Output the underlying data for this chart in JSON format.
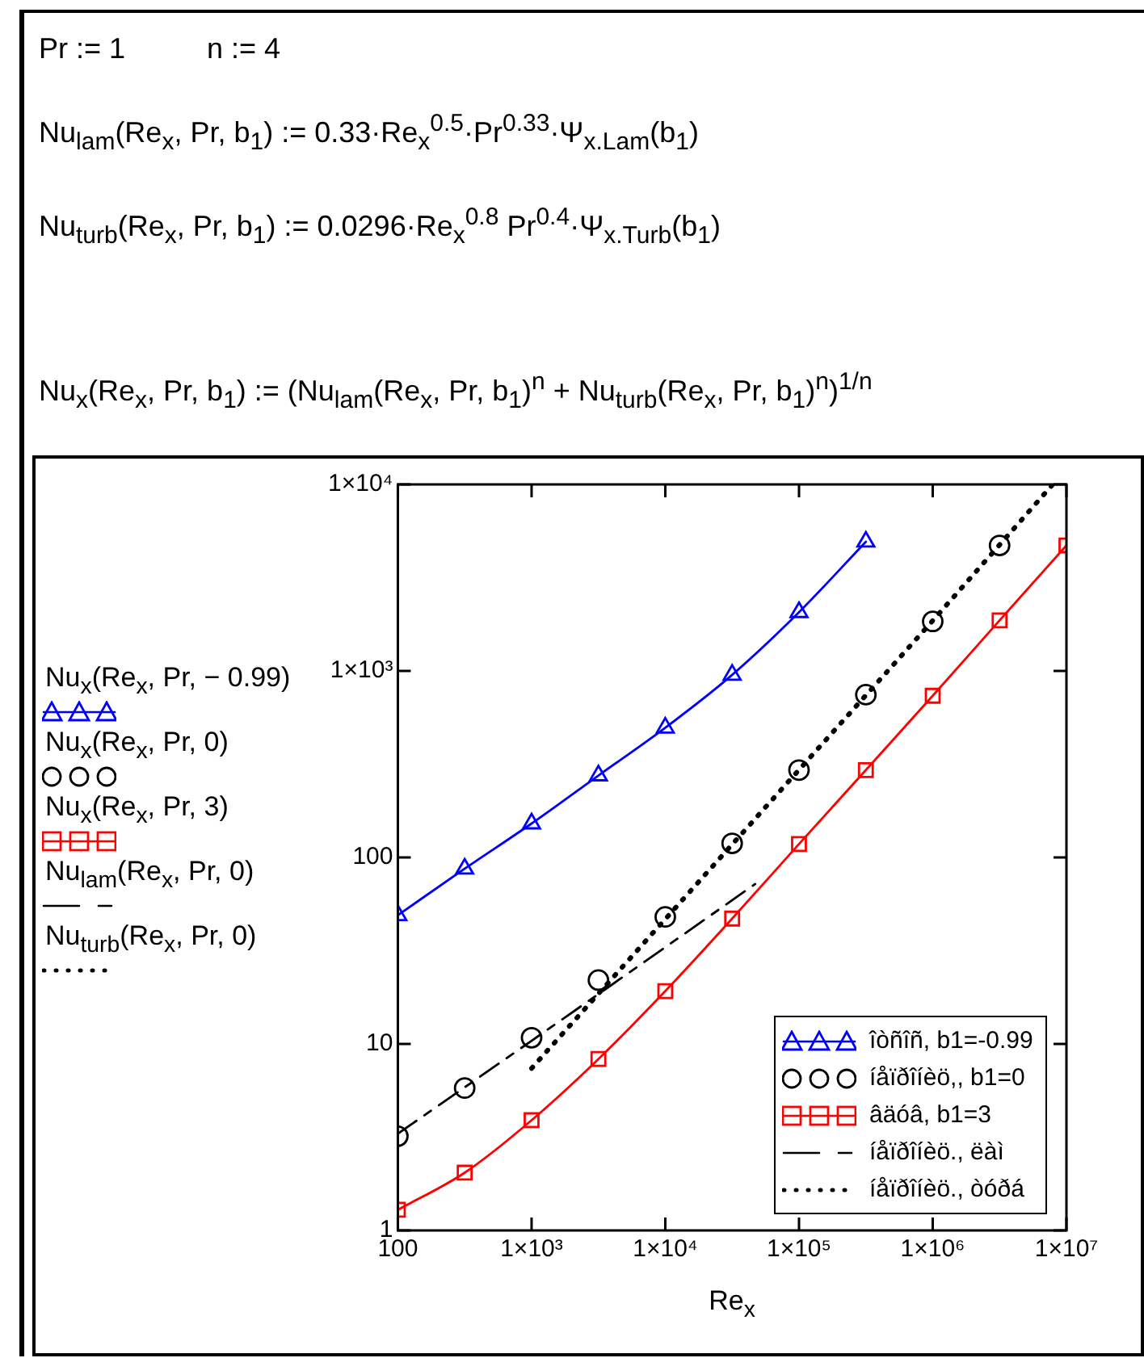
{
  "chart_data": {
    "type": "line",
    "xlabel": "Re$_{x}$",
    "annotations": [
      "Pr := 1",
      "n := 4",
      "Nu$_{lam}$(Re$_{x}$, Pr, b$_{1}$) := 0.33·Re$_{x}$$^{0.5}$·Pr$^{0.33}$·Ψ$_{x.Lam}$(b$_{1}$)",
      "Nu$_{turb}$(Re$_{x}$, Pr, b$_{1}$) := 0.0296·Re$_{x}$$^{0.8}$ Pr$^{0.4}$·Ψ$_{x.Turb}$(b$_{1}$)",
      "Nu$_{x}$(Re$_{x}$, Pr, b$_{1}$) := (Nu$_{lam}$(Re$_{x}$, Pr, b$_{1}$)$^{n}$ + Nu$_{turb}$(Re$_{x}$, Pr, b$_{1}$)$^{n}$)$^{1/n}$",
      "Nu$_{x}$(Re$_{x}$, Pr, − 0.99)",
      "Nu$_{x}$(Re$_{x}$, Pr, 0)",
      "Nu$_{x}$(Re$_{x}$, Pr, 3)",
      "Nu$_{lam}$(Re$_{x}$, Pr, 0)",
      "Nu$_{turb}$(Re$_{x}$, Pr, 0)"
    ],
    "log": "xy",
    "grid": false,
    "legend": "bottom right",
    "xlim": [
      100,
      10000000
    ],
    "xticks": [
      100,
      {
        "value": 1000,
        "label": "1×10³"
      },
      {
        "value": 10000,
        "label": "1×10⁴"
      },
      {
        "value": 100000,
        "label": "1×10⁵"
      },
      {
        "value": 1000000,
        "label": "1×10⁶"
      },
      {
        "value": 10000000,
        "label": "1×10⁷"
      }
    ],
    "ylim": [
      1,
      10000
    ],
    "yticks": [
      1,
      10,
      100,
      {
        "value": 1000,
        "label": "1×10³"
      },
      {
        "value": 10000,
        "label": "1×10⁴"
      }
    ],
    "series": [
      {
        "name": "îòñîñ, b1=-0.99",
        "color": "#0000ff",
        "type": "line",
        "marker": "triangle",
        "line_style": "solid",
        "x": [
          100,
          316,
          1000,
          3162,
          10000,
          31623,
          100000,
          316228
        ],
        "values": [
          49,
          87,
          152,
          275,
          496,
          953,
          2065,
          4930
        ]
      },
      {
        "name": "íåïðîíèö,, b1=0",
        "color": "#000000",
        "type": "scatter",
        "marker": "circle",
        "x": [
          100,
          316,
          1000,
          3162,
          10000,
          31623,
          100000,
          316228,
          1000000,
          3162278
        ],
        "values": [
          3.2,
          5.8,
          10.8,
          22,
          48,
          119,
          294,
          746,
          1842,
          4710
        ]
      },
      {
        "name": "âäóâ, b1=3",
        "color": "#ff0000",
        "type": "line",
        "marker": "square",
        "line_style": "solid",
        "x": [
          100,
          316,
          1000,
          3162,
          10000,
          31623,
          100000,
          316228,
          1000000,
          3162278,
          10000000
        ],
        "values": [
          1.29,
          2.04,
          3.9,
          8.3,
          19.2,
          47,
          118,
          294,
          736,
          1866,
          4710
        ]
      },
      {
        "name": "íåïðîíèö., ëàì",
        "color": "#000000",
        "type": "line",
        "marker": "none",
        "line_style": "dashed",
        "x": [
          100,
          1000,
          10000,
          47000
        ],
        "values": [
          3.3,
          10.4,
          33,
          72
        ]
      },
      {
        "name": "íåïðîíèö., òóðá",
        "color": "#000000",
        "type": "line",
        "marker": "none",
        "line_style": "dotted",
        "x": [
          1000,
          10000,
          100000,
          1000000,
          7900000
        ],
        "values": [
          7.4,
          46.7,
          295,
          1862,
          10000
        ]
      }
    ]
  }
}
